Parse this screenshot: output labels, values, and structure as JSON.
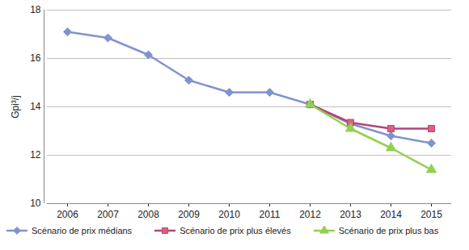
{
  "chart_data": {
    "type": "line",
    "y_label": "Gpi³/j",
    "categories": [
      "2006",
      "2007",
      "2008",
      "2009",
      "2010",
      "2011",
      "2012",
      "2013",
      "2014",
      "2015"
    ],
    "series": [
      {
        "name": "Scénario de prix médians",
        "color": "#7f93cf",
        "marker": "diamond",
        "values": [
          17.1,
          16.85,
          16.15,
          15.1,
          14.6,
          14.6,
          14.1,
          13.3,
          12.8,
          12.5
        ]
      },
      {
        "name": "Scénario de prix plus élevés",
        "color": "#b4457a",
        "marker": "square",
        "values": [
          null,
          null,
          null,
          null,
          null,
          null,
          14.1,
          13.35,
          13.1,
          13.1
        ]
      },
      {
        "name": "Scénario de prix plus bas",
        "color": "#92d050",
        "marker": "triangle",
        "values": [
          null,
          null,
          null,
          null,
          null,
          null,
          14.1,
          13.1,
          12.3,
          11.4
        ]
      }
    ],
    "ylim": [
      10,
      18
    ],
    "yticks": [
      10,
      12,
      14,
      16,
      18
    ],
    "grid": true,
    "legend": "bottom"
  }
}
